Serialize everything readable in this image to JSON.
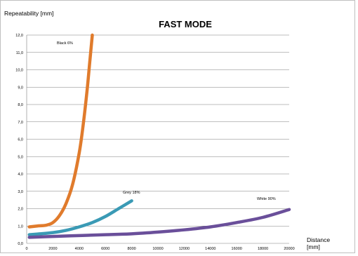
{
  "chart_data": {
    "type": "line",
    "title": "FAST MODE",
    "ylabel": "Repeatability [mm]",
    "xlabel_line1": "Distance",
    "xlabel_line2": "[mm]",
    "xlim": [
      0,
      20000
    ],
    "ylim": [
      0,
      12
    ],
    "x_ticks": [
      0,
      2000,
      4000,
      6000,
      8000,
      10000,
      12000,
      14000,
      16000,
      18000,
      20000
    ],
    "x_tick_labels": [
      "0",
      "2000",
      "4000",
      "6000",
      "8000",
      "10000",
      "12000",
      "14000",
      "16000",
      "18000",
      "20000"
    ],
    "y_ticks": [
      0,
      1,
      2,
      3,
      4,
      5,
      6,
      7,
      8,
      9,
      10,
      11,
      12
    ],
    "y_tick_labels": [
      "0,0",
      "1,0",
      "2,0",
      "3,0",
      "4,0",
      "5,0",
      "6,0",
      "7,0",
      "8,0",
      "9,0",
      "10,0",
      "11,0",
      "12,0"
    ],
    "grid": "horizontal",
    "series": [
      {
        "name": "Black 6%",
        "color": "#e07b2c",
        "x": [
          200,
          800,
          1500,
          2000,
          2500,
          3000,
          3500,
          4000,
          4300,
          4600,
          4800,
          5000
        ],
        "y": [
          0.95,
          1.0,
          1.05,
          1.2,
          1.6,
          2.3,
          3.4,
          5.2,
          6.8,
          8.8,
          10.4,
          12.0
        ]
      },
      {
        "name": "Grey 18%",
        "color": "#3a9ab5",
        "x": [
          200,
          1000,
          2000,
          3000,
          4000,
          5000,
          6000,
          7000,
          8000
        ],
        "y": [
          0.5,
          0.55,
          0.62,
          0.75,
          0.95,
          1.2,
          1.55,
          2.0,
          2.45
        ]
      },
      {
        "name": "White 90%",
        "color": "#6a4f9a",
        "x": [
          200,
          2000,
          4000,
          6000,
          8000,
          10000,
          12000,
          14000,
          16000,
          18000,
          20000
        ],
        "y": [
          0.35,
          0.4,
          0.45,
          0.5,
          0.55,
          0.65,
          0.78,
          0.95,
          1.2,
          1.5,
          1.95
        ]
      }
    ]
  }
}
